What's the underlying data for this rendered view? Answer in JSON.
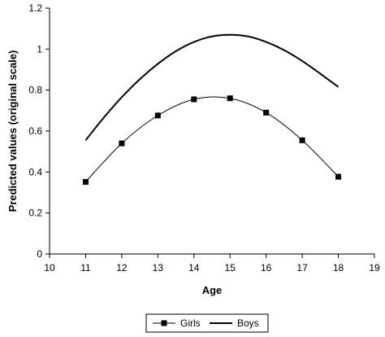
{
  "chart_data": {
    "type": "line",
    "title": "",
    "xlabel": "Age",
    "ylabel": "Predicted values (original scale)",
    "xlim": [
      10,
      19
    ],
    "ylim": [
      0,
      1.2
    ],
    "x_ticks": [
      "10",
      "11",
      "12",
      "13",
      "14",
      "15",
      "16",
      "17",
      "18",
      "19"
    ],
    "y_ticks": [
      "0",
      "0.2",
      "0.4",
      "0.6",
      "0.8",
      "1",
      "1.2"
    ],
    "grid": false,
    "legend_position": "bottom",
    "series": [
      {
        "name": "Girls",
        "marker": "square",
        "color": "#000000",
        "x": [
          11,
          12,
          13,
          14,
          15,
          16,
          17,
          18
        ],
        "y": [
          0.352,
          0.54,
          0.676,
          0.755,
          0.76,
          0.69,
          0.555,
          0.377
        ]
      },
      {
        "name": "Boys",
        "marker": "none",
        "color": "#000000",
        "x": [
          11,
          11.5,
          12,
          12.5,
          13,
          13.5,
          14,
          14.5,
          15,
          15.5,
          16,
          16.5,
          17,
          17.5,
          18
        ],
        "y": [
          0.555,
          0.665,
          0.765,
          0.853,
          0.928,
          0.99,
          1.035,
          1.062,
          1.07,
          1.062,
          1.035,
          0.995,
          0.942,
          0.88,
          0.815
        ]
      }
    ]
  }
}
